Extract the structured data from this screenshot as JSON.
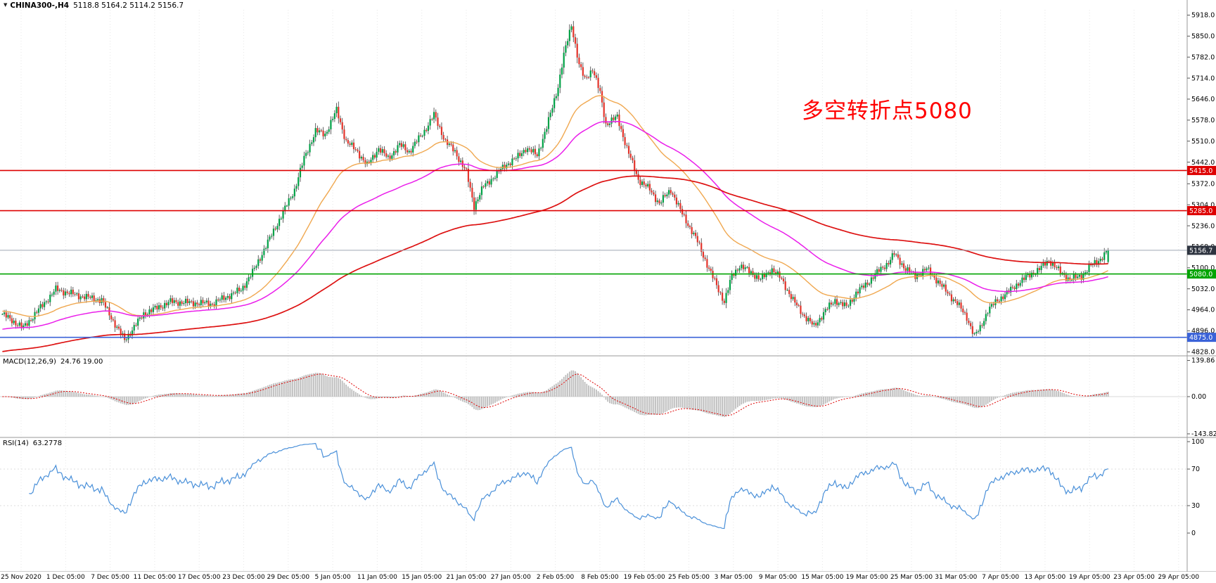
{
  "window": {
    "symbol_timeframe": "CHINA300-,H4",
    "ohlc_text": "5118.8 5164.2 5114.2 5156.7",
    "collapse_icon": "▼"
  },
  "annotation": {
    "text": "多空转折点5080",
    "color": "#FF0000"
  },
  "chart_data": [
    {
      "type": "candlestick",
      "title": "CHINA300-,H4",
      "timeframe": "H4",
      "last_candle": {
        "open": 5118.8,
        "high": 5164.2,
        "low": 5114.2,
        "close": 5156.7
      },
      "y_range": [
        4815,
        5935
      ],
      "y_ticks": [
        5918.0,
        5850.0,
        5782.0,
        5714.0,
        5646.0,
        5578.0,
        5510.0,
        5442.0,
        5372.0,
        5304.0,
        5236.0,
        5168.0,
        5100.0,
        5032.0,
        4964.0,
        4896.0,
        4828.0
      ],
      "x_ticks": [
        "25 Nov 2020",
        "1 Dec 05:00",
        "7 Dec 05:00",
        "11 Dec 05:00",
        "17 Dec 05:00",
        "23 Dec 05:00",
        "29 Dec 05:00",
        "5 Jan 05:00",
        "11 Jan 05:00",
        "15 Jan 05:00",
        "21 Jan 05:00",
        "27 Jan 05:00",
        "2 Feb 05:00",
        "8 Feb 05:00",
        "19 Feb 05:00",
        "25 Feb 05:00",
        "3 Mar 05:00",
        "9 Mar 05:00",
        "15 Mar 05:00",
        "19 Mar 05:00",
        "25 Mar 05:00",
        "31 Mar 05:00",
        "7 Apr 05:00",
        "13 Apr 05:00",
        "19 Apr 05:00",
        "23 Apr 05:00",
        "29 Apr 05:00"
      ],
      "num_candles": 580,
      "price_path": [
        [
          0,
          4950
        ],
        [
          11,
          4906
        ],
        [
          28,
          5030
        ],
        [
          40,
          5010
        ],
        [
          52,
          4995
        ],
        [
          58,
          4928
        ],
        [
          64,
          4866
        ],
        [
          74,
          4951
        ],
        [
          88,
          4990
        ],
        [
          110,
          4984
        ],
        [
          125,
          5029
        ],
        [
          131,
          5085
        ],
        [
          142,
          5219
        ],
        [
          153,
          5353
        ],
        [
          158,
          5454
        ],
        [
          164,
          5543
        ],
        [
          169,
          5532
        ],
        [
          175,
          5610
        ],
        [
          180,
          5509
        ],
        [
          186,
          5476
        ],
        [
          191,
          5431
        ],
        [
          197,
          5487
        ],
        [
          202,
          5454
        ],
        [
          208,
          5498
        ],
        [
          213,
          5476
        ],
        [
          221,
          5543
        ],
        [
          226,
          5595
        ],
        [
          232,
          5509
        ],
        [
          237,
          5476
        ],
        [
          243,
          5409
        ],
        [
          247,
          5300
        ],
        [
          252,
          5364
        ],
        [
          258,
          5398
        ],
        [
          263,
          5431
        ],
        [
          269,
          5454
        ],
        [
          274,
          5487
        ],
        [
          280,
          5465
        ],
        [
          285,
          5554
        ],
        [
          291,
          5688
        ],
        [
          294,
          5788
        ],
        [
          298,
          5888
        ],
        [
          302,
          5755
        ],
        [
          305,
          5710
        ],
        [
          309,
          5744
        ],
        [
          313,
          5665
        ],
        [
          316,
          5565
        ],
        [
          322,
          5588
        ],
        [
          327,
          5487
        ],
        [
          333,
          5386
        ],
        [
          339,
          5353
        ],
        [
          344,
          5308
        ],
        [
          350,
          5353
        ],
        [
          355,
          5286
        ],
        [
          359,
          5241
        ],
        [
          364,
          5185
        ],
        [
          370,
          5096
        ],
        [
          375,
          5029
        ],
        [
          378,
          4990
        ],
        [
          382,
          5073
        ],
        [
          386,
          5107
        ],
        [
          392,
          5085
        ],
        [
          397,
          5062
        ],
        [
          403,
          5096
        ],
        [
          408,
          5062
        ],
        [
          414,
          4995
        ],
        [
          419,
          4951
        ],
        [
          425,
          4910
        ],
        [
          431,
          4962
        ],
        [
          436,
          4995
        ],
        [
          442,
          4973
        ],
        [
          447,
          5018
        ],
        [
          453,
          5051
        ],
        [
          458,
          5085
        ],
        [
          464,
          5118
        ],
        [
          467,
          5145
        ],
        [
          473,
          5096
        ],
        [
          478,
          5073
        ],
        [
          484,
          5096
        ],
        [
          489,
          5062
        ],
        [
          495,
          5018
        ],
        [
          500,
          4984
        ],
        [
          505,
          4940
        ],
        [
          509,
          4878
        ],
        [
          512,
          4906
        ],
        [
          516,
          4962
        ],
        [
          521,
          4995
        ],
        [
          526,
          5018
        ],
        [
          532,
          5051
        ],
        [
          537,
          5073
        ],
        [
          543,
          5096
        ],
        [
          548,
          5125
        ],
        [
          554,
          5085
        ],
        [
          559,
          5062
        ],
        [
          565,
          5073
        ],
        [
          570,
          5107
        ],
        [
          575,
          5129
        ],
        [
          579,
          5156.7
        ]
      ],
      "hlines": [
        {
          "price": 5415.0,
          "label": "5415.0",
          "color": "#DE0000"
        },
        {
          "price": 5285.0,
          "label": "5285.0",
          "color": "#DE0000"
        },
        {
          "price": 5080.0,
          "label": "5080.0",
          "color": "#00A400"
        },
        {
          "price": 4875.0,
          "label": "4875.0",
          "color": "#3A62D8"
        }
      ],
      "current_price": {
        "value": 5156.7,
        "label": "5156.7",
        "line_color": "#9FA8B3",
        "badge_color": "#2E3440"
      },
      "colors": {
        "up": "#00A146",
        "down": "#E3342B",
        "wick": "#3A3A3A",
        "ma_fast": "#F0A850",
        "ma_mid": "#EA1EEA",
        "ma_slow": "#DD1111",
        "grid": "#E7E7E7"
      },
      "legend_position": "none",
      "grid": true
    },
    {
      "type": "bar",
      "label": "MACD(12,26,9)",
      "display_values": "24.76 19.00",
      "params": [
        12,
        26,
        9
      ],
      "y_ticks": [
        139.86,
        0.0,
        -143.82
      ],
      "colors": {
        "histogram": "#BDBDBD",
        "signal": "#DD0000"
      }
    },
    {
      "type": "line",
      "label": "RSI(14)",
      "display_value": "63.2778",
      "period": 14,
      "y_ticks": [
        100,
        70,
        30,
        0
      ],
      "levels": [
        70,
        30
      ],
      "colors": {
        "line": "#4A90D9"
      }
    }
  ]
}
